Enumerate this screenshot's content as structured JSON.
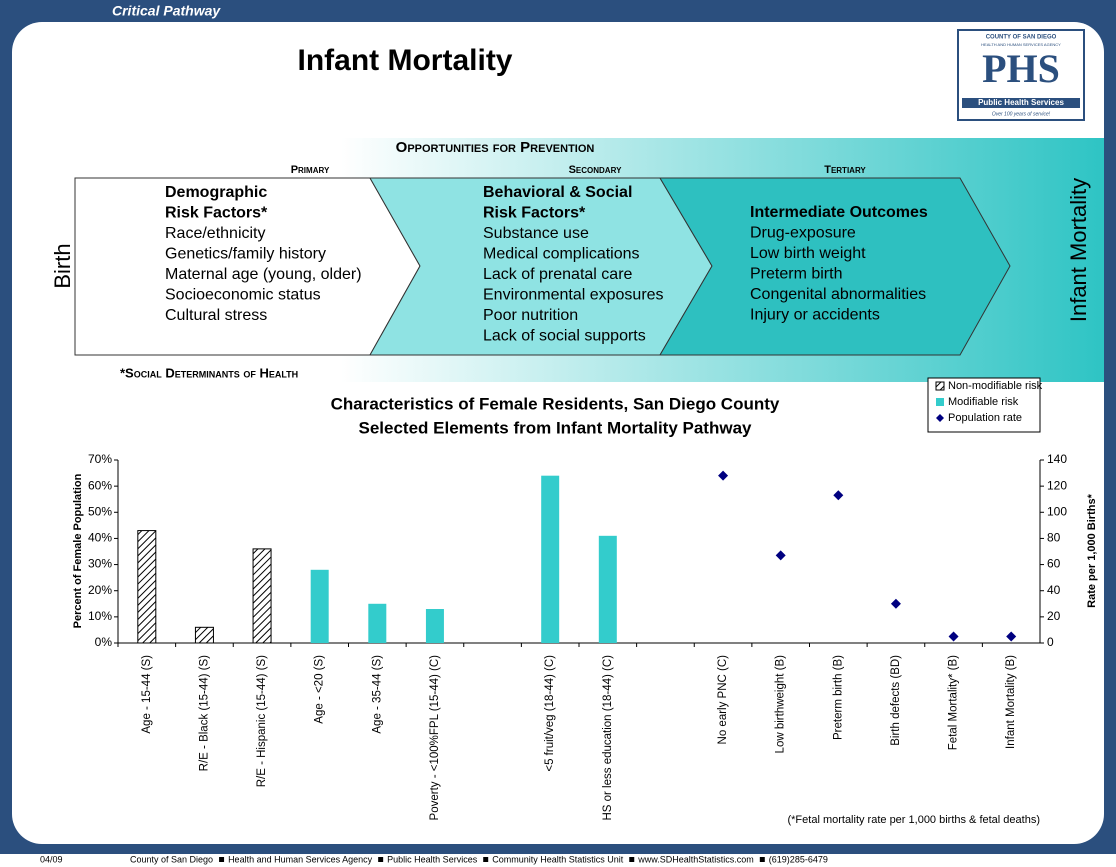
{
  "header": {
    "tab": "Critical Pathway",
    "title": "Infant Mortality"
  },
  "logo": {
    "county": "COUNTY OF SAN DIEGO",
    "agency": "HEALTH AND HUMAN SERVICES AGENCY",
    "letters": "PHS",
    "name": "Public Health Services",
    "motto": "Over 100 years of service!"
  },
  "pathway": {
    "heading": "Opportunities for Prevention",
    "start": "Birth",
    "end": "Infant Mortality",
    "stages": [
      {
        "label": "Primary",
        "heading": [
          "Demographic",
          "Risk Factors*"
        ],
        "items": [
          "Race/ethnicity",
          "Genetics/family history",
          "Maternal age (young, older)",
          "Socioeconomic status",
          "Cultural stress"
        ]
      },
      {
        "label": "Secondary",
        "heading": [
          "Behavioral & Social",
          "Risk Factors*"
        ],
        "items": [
          "Substance use",
          "Medical complications",
          "Lack of prenatal care",
          "Environmental exposures",
          "Poor nutrition",
          "Lack of social supports"
        ]
      },
      {
        "label": "Tertiary",
        "heading": [
          "Intermediate Outcomes"
        ],
        "items": [
          "Drug-exposure",
          "Low birth weight",
          "Preterm birth",
          "Congenital abnormalities",
          "Injury or accidents"
        ]
      }
    ],
    "footnote": "*Social Determinants of Health"
  },
  "chart_data": {
    "type": "bar",
    "title": "Characteristics of Female Residents, San Diego County",
    "subtitle": "Selected Elements from Infant Mortality Pathway",
    "y_label": "Percent of Female Population",
    "y2_label": "Rate per 1,000 Births*",
    "note": "(*Fetal mortality rate per 1,000 births & fetal deaths)",
    "categories": [
      "Age - 15-44 (S)",
      "R/E - Black (15-44) (S)",
      "R/E - Hispanic (15-44) (S)",
      "Age - <20 (S)",
      "Age - 35-44 (S)",
      "Poverty - <100%FPL (15-44) (C)",
      null,
      "<5 fruit/veg (18-44) (C)",
      "HS or less education (18-44) (C)",
      null,
      "No early PNC (C)",
      "Low birthweight (B)",
      "Preterm birth (B)",
      "Birth defects (BD)",
      "Fetal Mortality* (B)",
      "Infant Mortality (B)"
    ],
    "series": [
      {
        "name": "Non-modifiable risk",
        "type": "bar",
        "pattern": "hatch",
        "color": "#000000",
        "values": [
          43,
          6,
          36,
          null,
          null,
          null,
          null,
          null,
          null,
          null,
          null,
          null,
          null,
          null,
          null,
          null
        ]
      },
      {
        "name": "Modifiable risk",
        "type": "bar",
        "color": "#33cccc",
        "values": [
          null,
          null,
          null,
          28,
          15,
          13,
          null,
          64,
          41,
          null,
          null,
          null,
          null,
          null,
          null,
          null
        ]
      },
      {
        "name": "Population rate",
        "type": "scatter",
        "axis": "y2",
        "color": "#000080",
        "values": [
          null,
          null,
          null,
          null,
          null,
          null,
          null,
          null,
          null,
          null,
          128,
          67,
          113,
          30,
          5,
          5
        ]
      }
    ],
    "ylim": [
      0,
      70
    ],
    "yticks": [
      {
        "value": 0,
        "label": "0%"
      },
      {
        "value": 10,
        "label": "10%"
      },
      {
        "value": 20,
        "label": "20%"
      },
      {
        "value": 30,
        "label": "30%"
      },
      {
        "value": 40,
        "label": "40%"
      },
      {
        "value": 50,
        "label": "50%"
      },
      {
        "value": 60,
        "label": "60%"
      },
      {
        "value": 70,
        "label": "70%"
      }
    ],
    "y2lim": [
      0,
      140
    ],
    "y2ticks": [
      0,
      20,
      40,
      60,
      80,
      100,
      120,
      140
    ],
    "legend": "top-right",
    "grid": false
  },
  "footer": {
    "date": "04/09",
    "items": [
      "County of San Diego",
      "Health and Human Services Agency",
      "Public Health Services",
      "Community Health Statistics Unit",
      "www.SDHealthStatistics.com",
      "(619)285-6479"
    ]
  }
}
